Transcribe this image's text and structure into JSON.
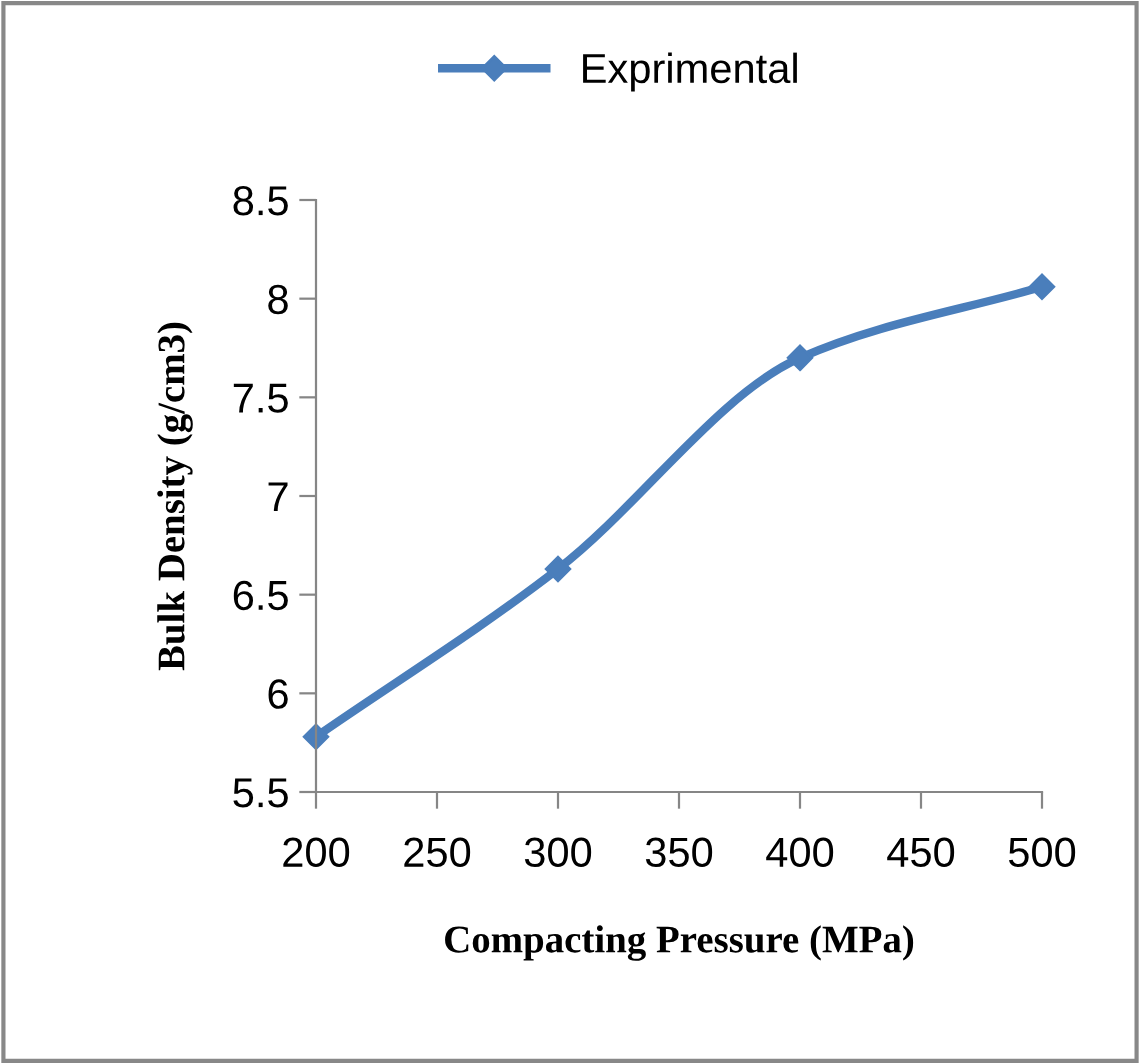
{
  "chart_data": {
    "type": "line",
    "xlabel": "Compacting Pressure (MPa)",
    "ylabel": "Bulk Density (g/cm3)",
    "x": [
      200,
      300,
      400,
      500
    ],
    "series": [
      {
        "name": "Exprimental",
        "color": "#4a7ebb",
        "values": [
          5.78,
          6.63,
          7.7,
          8.06
        ]
      }
    ],
    "xlim": [
      200,
      500
    ],
    "xticks": [
      200,
      250,
      300,
      350,
      400,
      450,
      500
    ],
    "ylim": [
      5.5,
      8.5
    ],
    "yticks": [
      5.5,
      6,
      6.5,
      7,
      7.5,
      8,
      8.5
    ],
    "marker": "diamond",
    "line_style": "solid",
    "legend": "top",
    "grid": false
  }
}
